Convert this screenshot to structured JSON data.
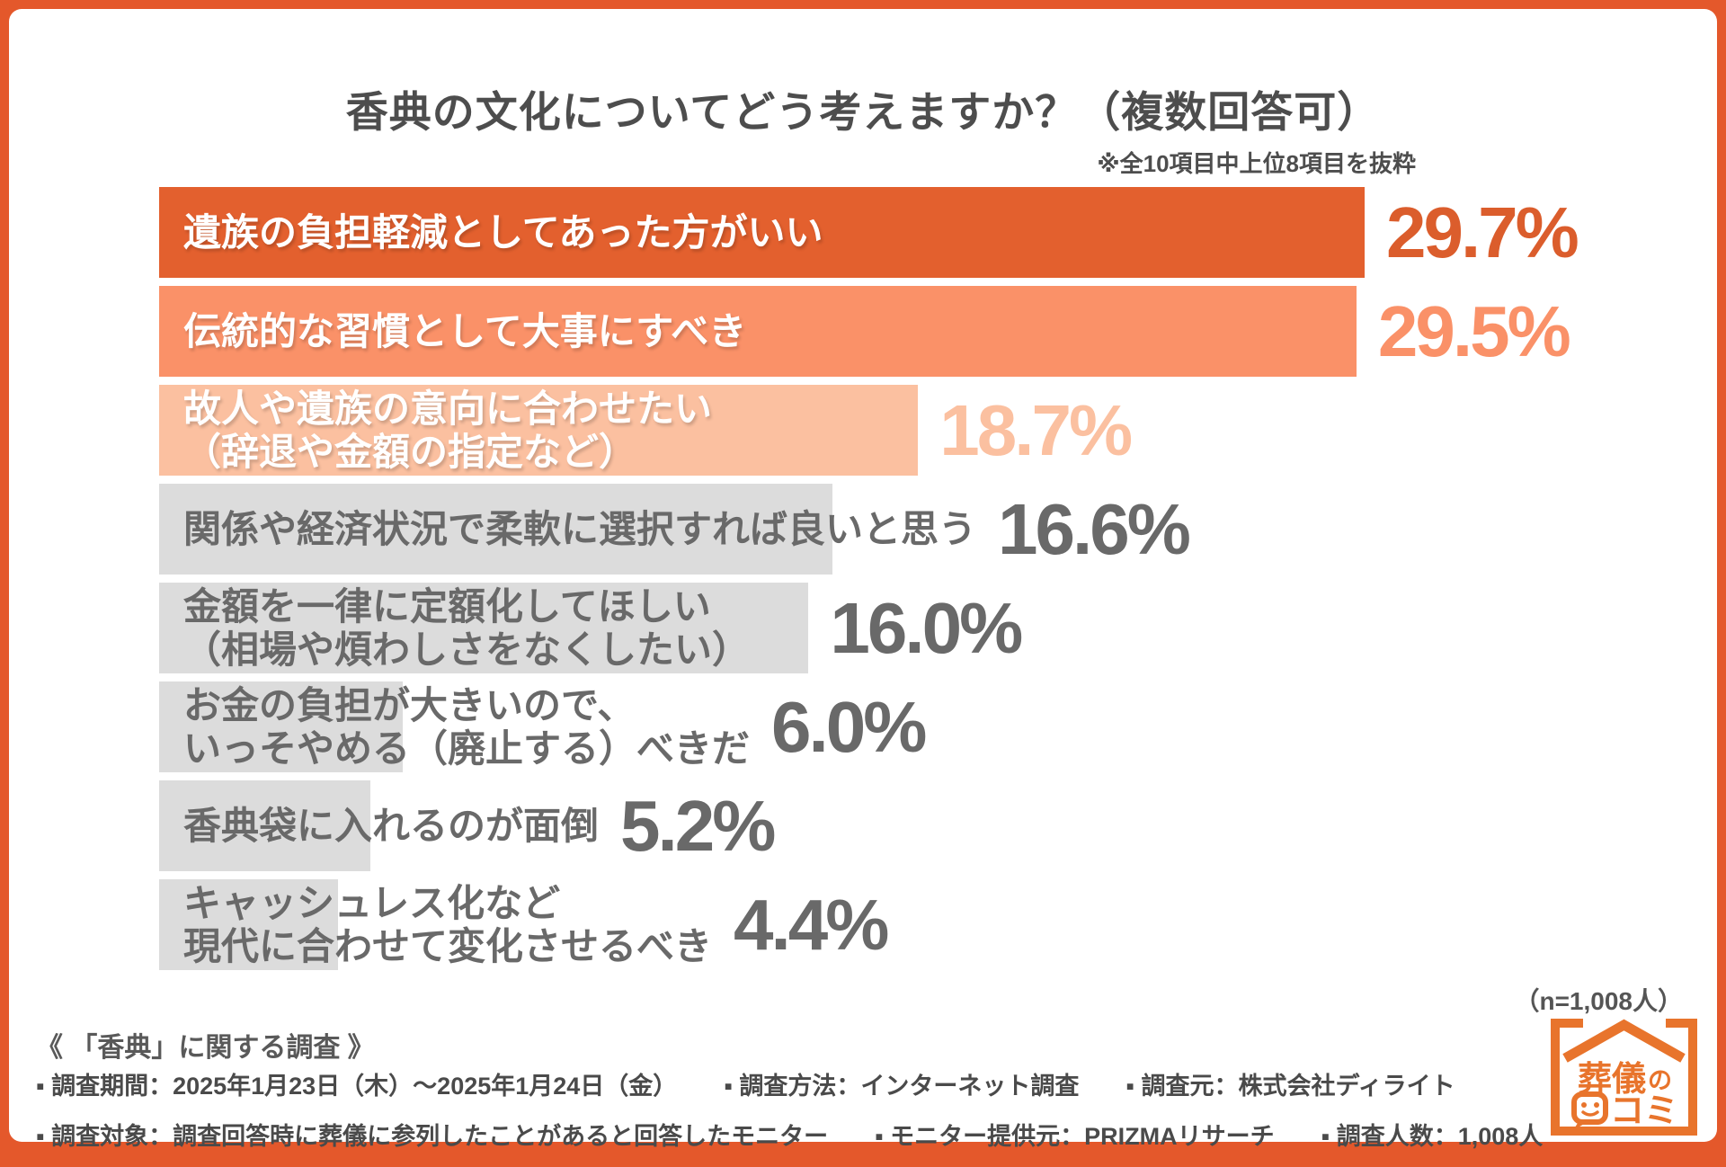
{
  "page": {
    "border_color": "#E4582B",
    "card_background": "#FFFFFF"
  },
  "header": {
    "title": "香典の文化についてどう考えますか？（複数回答可）",
    "note": "※全10項目中上位8項目を抜粋"
  },
  "chart_data": {
    "type": "bar",
    "orientation": "horizontal",
    "unit": "%",
    "axis_max": 29.7,
    "grid": false,
    "legend": false,
    "categories": [
      "遺族の負担軽減としてあった方がいい",
      "伝統的な習慣として大事にすべき",
      "故人や遺族の意向に合わせたい（辞退や金額の指定など）",
      "関係や経済状況で柔軟に選択すれば良いと思う",
      "金額を一律に定額化してほしい（相場や煩わしさをなくしたい）",
      "お金の負担が大きいので、いっそやめる（廃止する）べきだ",
      "香典袋に入れるのが面倒",
      "キャッシュレス化など現代に合わせて変化させるべき"
    ],
    "values": [
      29.7,
      29.5,
      18.7,
      16.6,
      16.0,
      6.0,
      5.2,
      4.4
    ],
    "bars": [
      {
        "label_lines": [
          "遺族の負担軽減としてあった方がいい"
        ],
        "value": 29.7,
        "value_label": "29.7%",
        "bar_color": "#E3602E",
        "label_style": "light",
        "value_color": "#DB5D2C"
      },
      {
        "label_lines": [
          "伝統的な習慣として大事にすべき"
        ],
        "value": 29.5,
        "value_label": "29.5%",
        "bar_color": "#FA9168",
        "label_style": "light",
        "value_color": "#FA9168"
      },
      {
        "label_lines": [
          "故人や遺族の意向に合わせたい",
          "（辞退や金額の指定など）"
        ],
        "value": 18.7,
        "value_label": "18.7%",
        "bar_color": "#FBC0A0",
        "label_style": "light",
        "value_color": "#FBC0A0"
      },
      {
        "label_lines": [
          "関係や経済状況で柔軟に選択すれば良いと思う"
        ],
        "value": 16.6,
        "value_label": "16.6%",
        "bar_color": "#DCDCDC",
        "label_style": "dark",
        "value_color": "#696969"
      },
      {
        "label_lines": [
          "金額を一律に定額化してほしい",
          "（相場や煩わしさをなくしたい）"
        ],
        "value": 16.0,
        "value_label": "16.0%",
        "bar_color": "#DCDCDC",
        "label_style": "dark",
        "value_color": "#696969"
      },
      {
        "label_lines": [
          "お金の負担が大きいので、",
          "いっそやめる（廃止する）べきだ"
        ],
        "value": 6.0,
        "value_label": "6.0%",
        "bar_color": "#DCDCDC",
        "label_style": "dark",
        "value_color": "#696969"
      },
      {
        "label_lines": [
          "香典袋に入れるのが面倒"
        ],
        "value": 5.2,
        "value_label": "5.2%",
        "bar_color": "#DCDCDC",
        "label_style": "dark",
        "value_color": "#696969"
      },
      {
        "label_lines": [
          "キャッシュレス化など",
          "現代に合わせて変化させるべき"
        ],
        "value": 4.4,
        "value_label": "4.4%",
        "bar_color": "#DCDCDC",
        "label_style": "dark",
        "value_color": "#696969"
      }
    ],
    "sample_note": "（n=1,008人）",
    "title": "香典の文化についてどう考えますか？（複数回答可）"
  },
  "footer": {
    "survey_title": "《 「香典」に関する調査 》",
    "rows": [
      {
        "items": [
          "▪ 調査期間：2025年1月23日（木）～2025年1月24日（金）",
          "▪ 調査方法：インターネット調査",
          "▪ 調査元：株式会社ディライト"
        ]
      },
      {
        "items": [
          "▪ 調査対象：調査回答時に葬儀に参列したことがあると回答したモニター",
          "▪ モニター提供元：PRIZMAリサーチ",
          "▪ 調査人数：1,008人"
        ]
      }
    ]
  },
  "logo": {
    "text_line1": "葬儀",
    "text_line1_suffix": "の",
    "text_line2": "コミ",
    "color": "#E8742C"
  }
}
